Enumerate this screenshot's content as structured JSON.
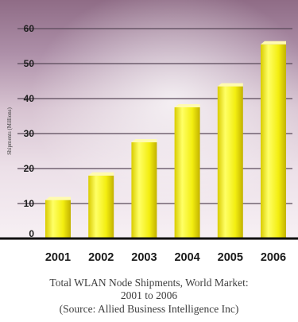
{
  "chart_data": {
    "type": "bar",
    "categories": [
      "2001",
      "2002",
      "2003",
      "2004",
      "2005",
      "2006"
    ],
    "values": [
      11,
      18,
      27.5,
      37.5,
      43.5,
      55.5
    ],
    "ylabel": "Shipments (Millions)",
    "ylim": [
      0,
      60
    ],
    "yticks": [
      0,
      10,
      20,
      30,
      40,
      50,
      60
    ],
    "grid": true,
    "legend": "none",
    "colors": {
      "bar": "#f2ee0c",
      "bar_highlight": "#ffff6a",
      "bar_shadow": "#c8b800",
      "gridline": "#5a4a5a",
      "axis": "#111111"
    }
  },
  "caption": {
    "line1": "Total WLAN Node Shipments, World Market:",
    "line2": "2001 to 2006",
    "line3": "(Source:  Allied Business Intelligence Inc)"
  }
}
